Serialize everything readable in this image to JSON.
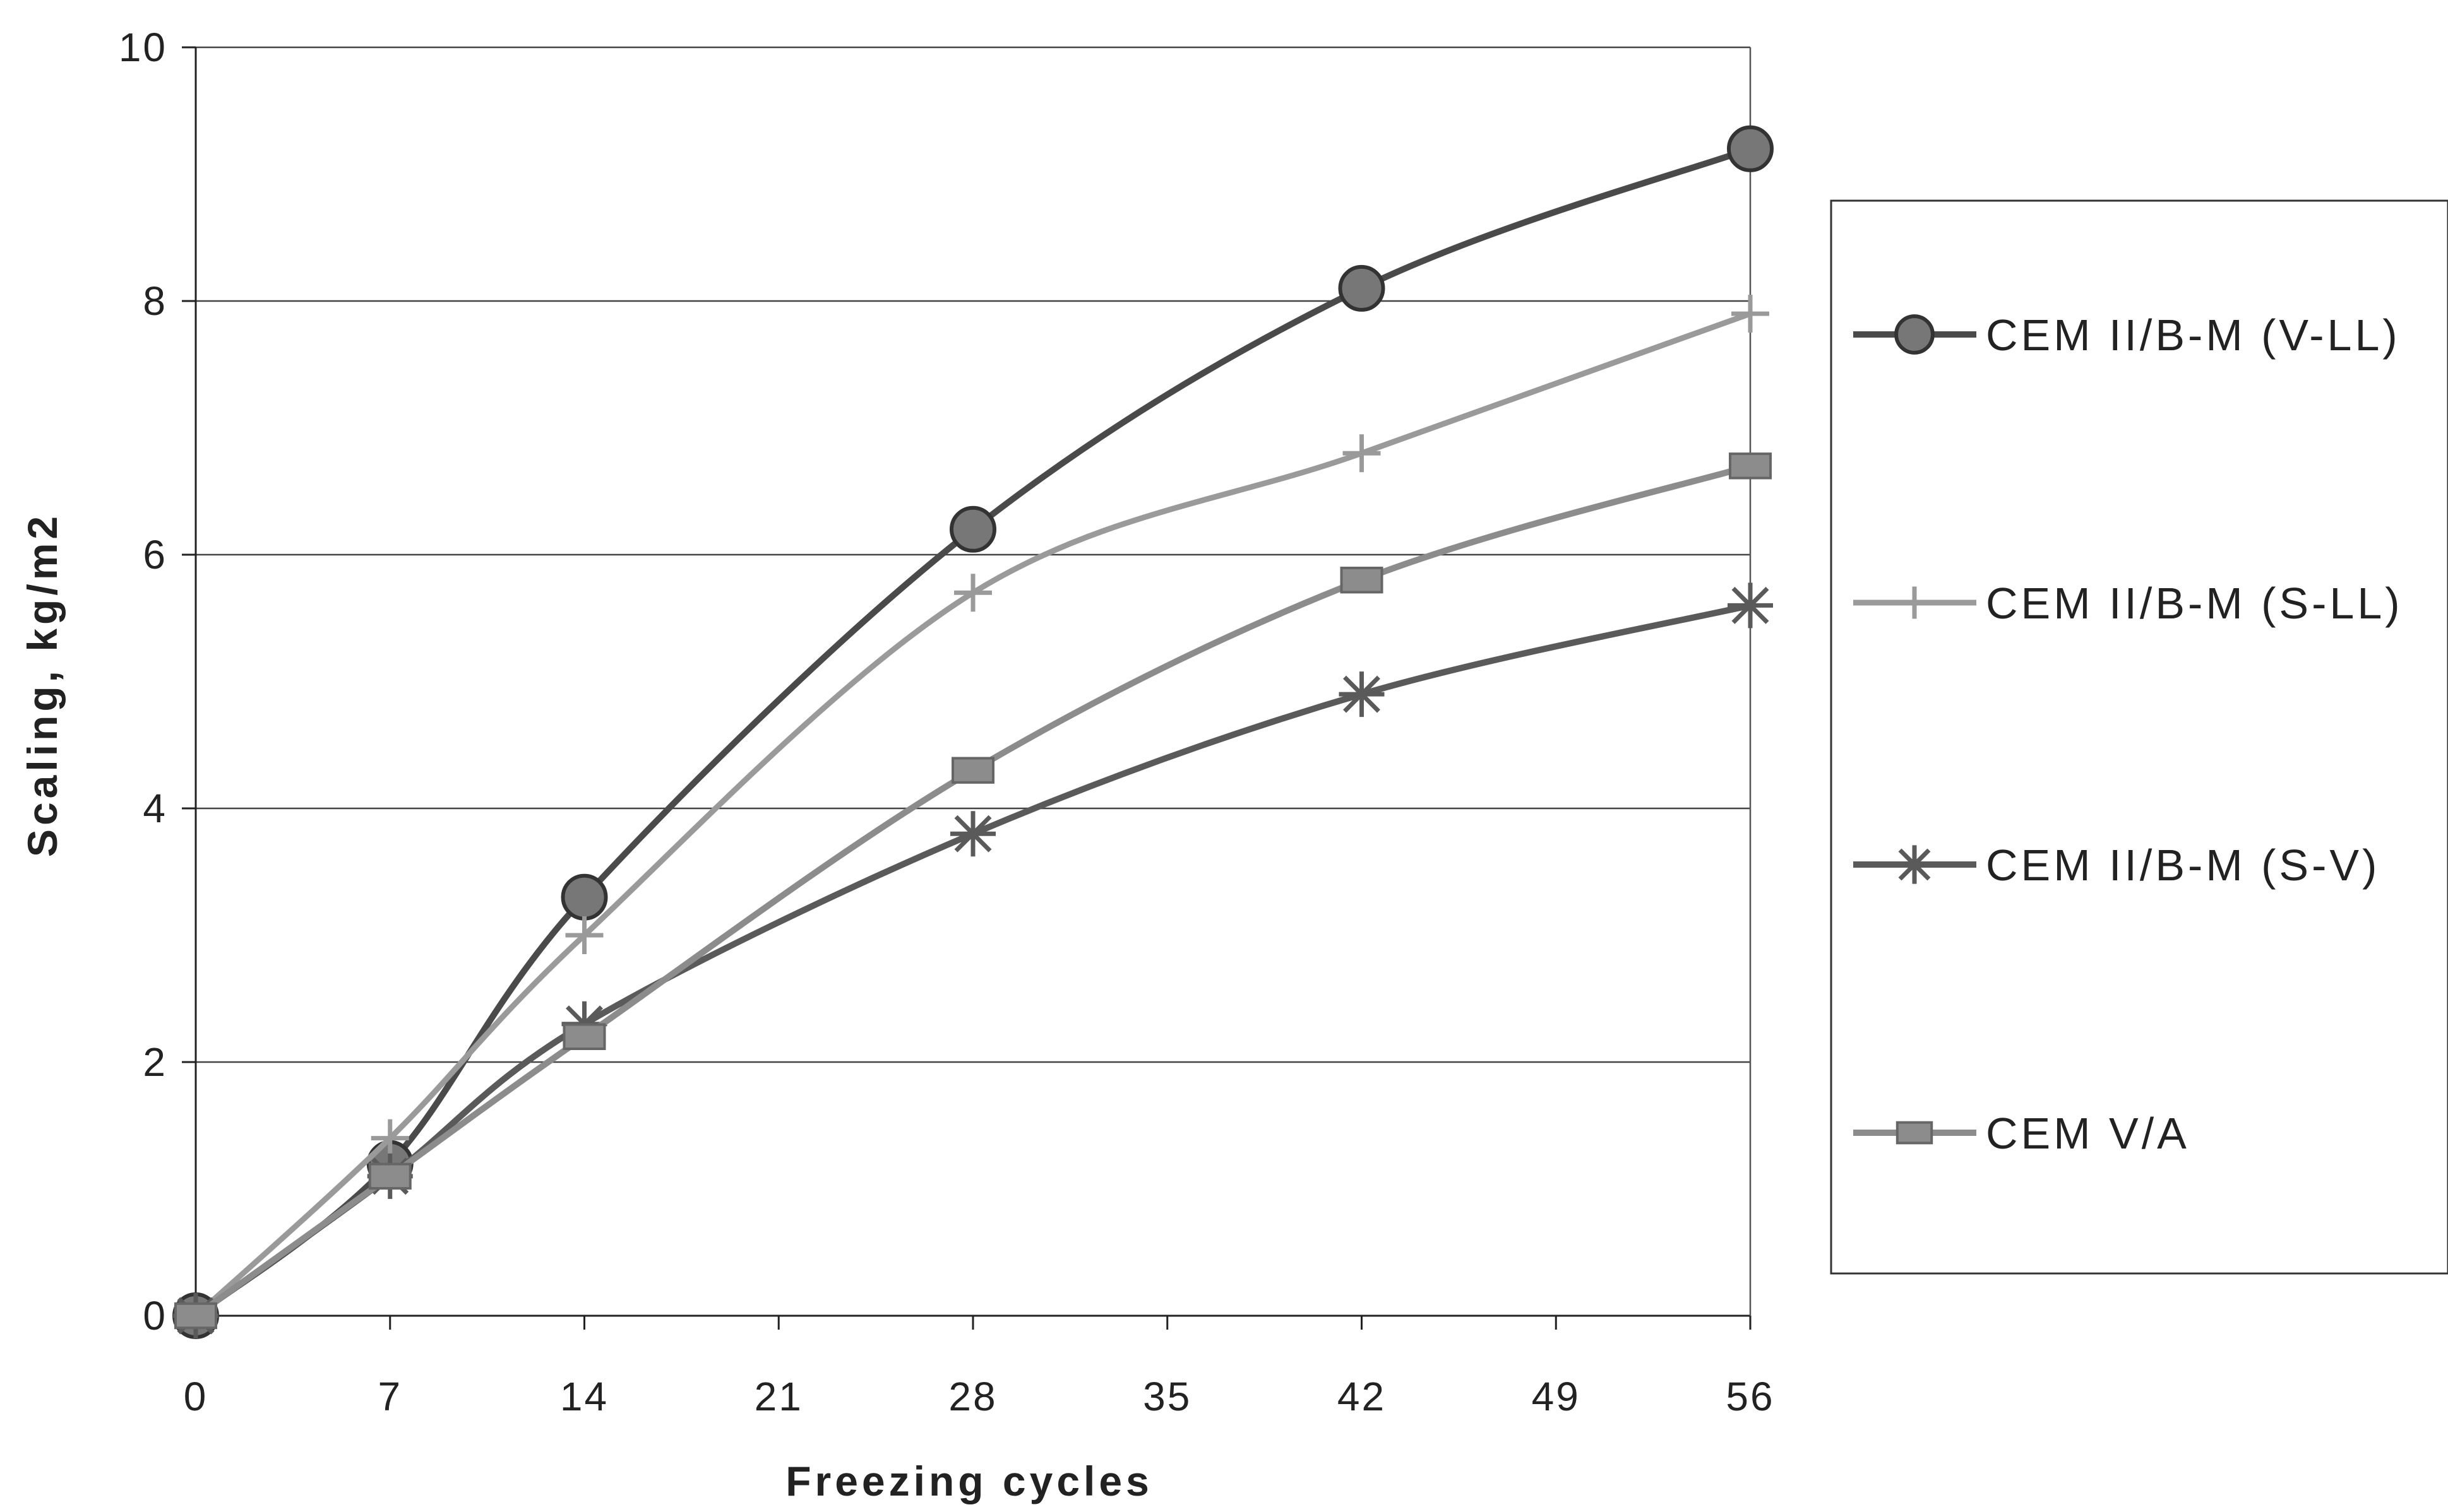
{
  "chart_data": {
    "type": "line",
    "title": "",
    "xlabel": "Freezing cycles",
    "ylabel": "Scaling, kg/m2",
    "x": [
      0,
      7,
      14,
      28,
      42,
      56
    ],
    "xticks": [
      "0",
      "7",
      "14",
      "21",
      "28",
      "35",
      "42",
      "49",
      "56"
    ],
    "yticks": [
      "0",
      "2",
      "4",
      "6",
      "8",
      "10"
    ],
    "xlim": [
      0,
      56
    ],
    "ylim": [
      0,
      10
    ],
    "grid": "horizontal",
    "legend_position": "right",
    "series": [
      {
        "name": "CEM II/B-M (V-LL)",
        "marker": "circle",
        "color": "#4a4a4a",
        "values": [
          0,
          1.2,
          3.3,
          6.2,
          8.1,
          9.2
        ]
      },
      {
        "name": "CEM II/B-M (S-LL)",
        "marker": "plus",
        "color": "#9a9a9a",
        "values": [
          0,
          1.4,
          3.0,
          5.7,
          6.8,
          7.9
        ]
      },
      {
        "name": "CEM II/B-M (S-V)",
        "marker": "asterisk",
        "color": "#5a5a5a",
        "values": [
          0,
          1.1,
          2.3,
          3.8,
          4.9,
          5.6
        ]
      },
      {
        "name": "CEM V/A",
        "marker": "square",
        "color": "#8c8c8c",
        "values": [
          0,
          1.1,
          2.2,
          4.3,
          5.8,
          6.7
        ]
      }
    ]
  }
}
